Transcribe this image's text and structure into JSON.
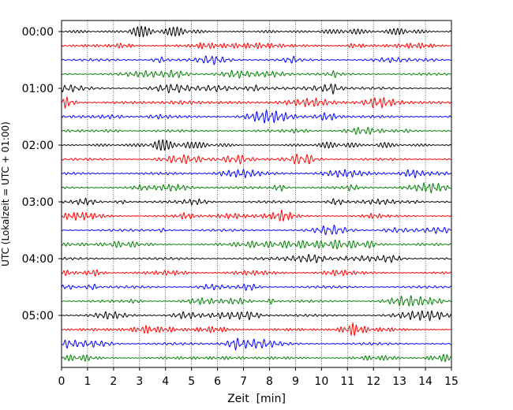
{
  "chart_data": {
    "type": "line",
    "title": "",
    "xlabel": "Zeit  [min]",
    "ylabel": "UTC (Lokalzeit = UTC + 01:00)",
    "xlim": [
      0,
      15
    ],
    "x_ticks": [
      "0",
      "1",
      "2",
      "3",
      "4",
      "5",
      "6",
      "7",
      "8",
      "9",
      "10",
      "11",
      "12",
      "13",
      "14",
      "15"
    ],
    "y_ticks": [
      "00:00",
      "01:00",
      "02:00",
      "03:00",
      "04:00",
      "05:00"
    ],
    "trace_interval_min": 15,
    "trace_count": 24,
    "trace_colors": [
      "#000000",
      "#ff0000",
      "#0000ff",
      "#008000"
    ],
    "grid": {
      "x": "dotted"
    },
    "traces": [
      {
        "start": "00:00",
        "color": "#000000"
      },
      {
        "start": "00:15",
        "color": "#ff0000"
      },
      {
        "start": "00:30",
        "color": "#0000ff"
      },
      {
        "start": "00:45",
        "color": "#008000"
      },
      {
        "start": "01:00",
        "color": "#000000"
      },
      {
        "start": "01:15",
        "color": "#ff0000"
      },
      {
        "start": "01:30",
        "color": "#0000ff"
      },
      {
        "start": "01:45",
        "color": "#008000"
      },
      {
        "start": "02:00",
        "color": "#000000"
      },
      {
        "start": "02:15",
        "color": "#ff0000"
      },
      {
        "start": "02:30",
        "color": "#0000ff"
      },
      {
        "start": "02:45",
        "color": "#008000"
      },
      {
        "start": "03:00",
        "color": "#000000"
      },
      {
        "start": "03:15",
        "color": "#ff0000"
      },
      {
        "start": "03:30",
        "color": "#0000ff"
      },
      {
        "start": "03:45",
        "color": "#008000"
      },
      {
        "start": "04:00",
        "color": "#000000"
      },
      {
        "start": "04:15",
        "color": "#ff0000"
      },
      {
        "start": "04:30",
        "color": "#0000ff"
      },
      {
        "start": "04:45",
        "color": "#008000"
      },
      {
        "start": "05:00",
        "color": "#000000"
      },
      {
        "start": "05:15",
        "color": "#ff0000"
      },
      {
        "start": "05:30",
        "color": "#0000ff"
      },
      {
        "start": "05:45",
        "color": "#008000"
      }
    ]
  }
}
